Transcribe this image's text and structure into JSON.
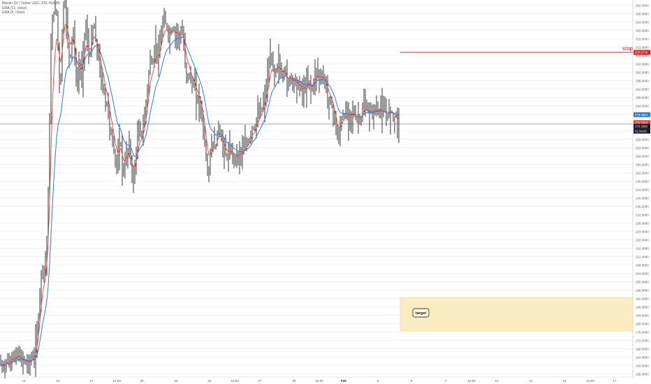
{
  "legend": {
    "symbol": "Bitcoin SV / Tether USD, 120, HUOBI",
    "ema1": "EMA (21, close)",
    "ema2": "EMA (6, close)"
  },
  "colors": {
    "candle": "#222222",
    "ema21": "#2a7fd4",
    "ema6": "#e8413c",
    "stop": "#e0242a",
    "target_fill": "#fbedc2",
    "target_border": "#efd487",
    "price_line": "#777777",
    "grid": "#ececec"
  },
  "annotations": {
    "stop_label": "stop",
    "stop_price": "309.5770",
    "target_label": "target"
  },
  "price_tags": {
    "ema21": "279.4864",
    "ema6": "276.3333",
    "last": "275.3006",
    "countdown": "01:34:03"
  },
  "chart_data": {
    "type": "candlestick",
    "y_ticks": [
      "332.0000",
      "328.0000",
      "324.0000",
      "320.0000",
      "316.0000",
      "312.0000",
      "308.0000",
      "304.0000",
      "300.0000",
      "296.0000",
      "292.0000",
      "288.0000",
      "284.0000",
      "280.0000",
      "276.0000",
      "272.0000",
      "268.0000",
      "264.0000",
      "260.0000",
      "256.0000",
      "252.0000",
      "248.0000",
      "244.0000",
      "240.0000",
      "236.0000",
      "232.0000",
      "228.0000",
      "224.0000",
      "220.0000",
      "216.0000",
      "212.0000",
      "208.0000",
      "204.0000",
      "200.0000",
      "196.0000",
      "192.0000",
      "188.0000",
      "184.0000",
      "180.0000",
      "176.0000",
      "172.0000",
      "168.0000",
      "164.0000",
      "160.0000",
      "156.0000"
    ],
    "ylim": [
      154.5,
      334.6
    ],
    "x_ticks": [
      "13",
      "15",
      "17",
      "12:00",
      "20",
      "22",
      "24",
      "12:00",
      "27",
      "29",
      "12:00",
      "Feb",
      "3",
      "5",
      "7",
      "12:00",
      "10",
      "12",
      "14",
      "12:00",
      "17"
    ],
    "stop_level": 309.577,
    "target_zone": [
      176.5,
      192.5
    ],
    "last_price": 275.3006,
    "ema21_last": 279.4864,
    "ema6_last": 276.3333,
    "price_path": [
      [
        0,
        161
      ],
      [
        2,
        160
      ],
      [
        4,
        158
      ],
      [
        6,
        160
      ],
      [
        8,
        162
      ],
      [
        10,
        163
      ],
      [
        12,
        161
      ],
      [
        14,
        160
      ],
      [
        16,
        163
      ],
      [
        18,
        166
      ],
      [
        20,
        164
      ],
      [
        22,
        162
      ],
      [
        24,
        165
      ],
      [
        26,
        167
      ],
      [
        28,
        164
      ],
      [
        30,
        161
      ],
      [
        32,
        163
      ],
      [
        34,
        164
      ],
      [
        36,
        161
      ],
      [
        38,
        160
      ],
      [
        40,
        162
      ],
      [
        42,
        161
      ],
      [
        44,
        163
      ],
      [
        46,
        164
      ],
      [
        48,
        163
      ],
      [
        50,
        166
      ],
      [
        52,
        172
      ],
      [
        54,
        178
      ],
      [
        56,
        190
      ],
      [
        58,
        200
      ],
      [
        60,
        206
      ],
      [
        62,
        208
      ],
      [
        64,
        205
      ],
      [
        66,
        212
      ],
      [
        68,
        230
      ],
      [
        70,
        255
      ],
      [
        72,
        300
      ],
      [
        74,
        322
      ],
      [
        76,
        330
      ],
      [
        78,
        328
      ],
      [
        80,
        332
      ],
      [
        82,
        326
      ],
      [
        84,
        300
      ],
      [
        86,
        288
      ],
      [
        88,
        310
      ],
      [
        90,
        330
      ],
      [
        92,
        334
      ],
      [
        94,
        332
      ],
      [
        96,
        318
      ],
      [
        98,
        310
      ],
      [
        100,
        305
      ],
      [
        102,
        312
      ],
      [
        104,
        322
      ],
      [
        106,
        316
      ],
      [
        108,
        300
      ],
      [
        110,
        292
      ],
      [
        112,
        300
      ],
      [
        114,
        306
      ],
      [
        116,
        296
      ],
      [
        118,
        300
      ],
      [
        120,
        315
      ],
      [
        122,
        322
      ],
      [
        124,
        318
      ],
      [
        126,
        312
      ],
      [
        128,
        306
      ],
      [
        130,
        312
      ],
      [
        132,
        318
      ],
      [
        134,
        324
      ],
      [
        136,
        318
      ],
      [
        138,
        312
      ],
      [
        140,
        308
      ],
      [
        142,
        306
      ],
      [
        144,
        298
      ],
      [
        146,
        292
      ],
      [
        148,
        296
      ],
      [
        150,
        286
      ],
      [
        152,
        282
      ],
      [
        154,
        290
      ],
      [
        156,
        276
      ],
      [
        158,
        268
      ],
      [
        160,
        272
      ],
      [
        162,
        264
      ],
      [
        164,
        260
      ],
      [
        166,
        258
      ],
      [
        168,
        254
      ],
      [
        170,
        262
      ],
      [
        172,
        270
      ],
      [
        174,
        260
      ],
      [
        176,
        250
      ],
      [
        178,
        254
      ],
      [
        180,
        262
      ],
      [
        182,
        258
      ],
      [
        184,
        268
      ],
      [
        186,
        262
      ],
      [
        188,
        256
      ],
      [
        190,
        245
      ],
      [
        192,
        250
      ],
      [
        194,
        260
      ],
      [
        196,
        266
      ],
      [
        198,
        270
      ],
      [
        200,
        276
      ],
      [
        202,
        268
      ],
      [
        204,
        272
      ],
      [
        206,
        276
      ],
      [
        208,
        282
      ],
      [
        210,
        290
      ],
      [
        212,
        296
      ],
      [
        214,
        303
      ],
      [
        216,
        310
      ],
      [
        218,
        300
      ],
      [
        220,
        308
      ],
      [
        222,
        316
      ],
      [
        224,
        312
      ],
      [
        226,
        304
      ],
      [
        228,
        310
      ],
      [
        230,
        316
      ],
      [
        232,
        322
      ],
      [
        234,
        326
      ],
      [
        236,
        320
      ],
      [
        238,
        326
      ],
      [
        240,
        318
      ],
      [
        242,
        314
      ],
      [
        244,
        322
      ],
      [
        246,
        318
      ],
      [
        248,
        324
      ],
      [
        250,
        316
      ],
      [
        252,
        318
      ],
      [
        254,
        322
      ],
      [
        256,
        314
      ],
      [
        258,
        318
      ],
      [
        260,
        320
      ],
      [
        262,
        318
      ],
      [
        264,
        306
      ],
      [
        266,
        302
      ],
      [
        268,
        296
      ],
      [
        270,
        302
      ],
      [
        272,
        298
      ],
      [
        274,
        292
      ],
      [
        276,
        296
      ],
      [
        278,
        294
      ],
      [
        280,
        290
      ],
      [
        282,
        286
      ],
      [
        284,
        288
      ],
      [
        286,
        284
      ],
      [
        288,
        282
      ],
      [
        290,
        276
      ],
      [
        292,
        270
      ],
      [
        294,
        262
      ],
      [
        296,
        255
      ],
      [
        298,
        250
      ],
      [
        300,
        258
      ],
      [
        302,
        262
      ],
      [
        304,
        268
      ],
      [
        306,
        266
      ],
      [
        308,
        262
      ],
      [
        310,
        268
      ],
      [
        312,
        276
      ],
      [
        314,
        272
      ],
      [
        316,
        270
      ],
      [
        318,
        264
      ],
      [
        320,
        266
      ],
      [
        322,
        262
      ],
      [
        324,
        258
      ],
      [
        326,
        262
      ],
      [
        328,
        260
      ],
      [
        330,
        264
      ],
      [
        332,
        262
      ],
      [
        334,
        258
      ],
      [
        336,
        260
      ],
      [
        338,
        262
      ],
      [
        340,
        258
      ],
      [
        342,
        260
      ],
      [
        344,
        264
      ],
      [
        346,
        260
      ],
      [
        348,
        262
      ],
      [
        350,
        266
      ],
      [
        352,
        264
      ],
      [
        354,
        268
      ],
      [
        356,
        266
      ],
      [
        358,
        270
      ],
      [
        360,
        272
      ],
      [
        362,
        276
      ],
      [
        364,
        270
      ],
      [
        366,
        276
      ],
      [
        368,
        280
      ],
      [
        370,
        278
      ],
      [
        372,
        284
      ],
      [
        374,
        280
      ],
      [
        376,
        286
      ],
      [
        378,
        284
      ],
      [
        380,
        290
      ],
      [
        382,
        296
      ],
      [
        384,
        300
      ],
      [
        386,
        304
      ],
      [
        388,
        310
      ],
      [
        390,
        304
      ],
      [
        392,
        298
      ],
      [
        394,
        302
      ],
      [
        396,
        300
      ],
      [
        398,
        306
      ],
      [
        400,
        304
      ],
      [
        402,
        300
      ],
      [
        404,
        296
      ],
      [
        406,
        300
      ],
      [
        408,
        304
      ],
      [
        410,
        296
      ],
      [
        412,
        292
      ],
      [
        414,
        296
      ],
      [
        416,
        300
      ],
      [
        418,
        296
      ],
      [
        420,
        292
      ],
      [
        422,
        298
      ],
      [
        424,
        296
      ],
      [
        426,
        294
      ],
      [
        428,
        290
      ],
      [
        430,
        296
      ],
      [
        432,
        292
      ],
      [
        434,
        288
      ],
      [
        436,
        294
      ],
      [
        438,
        296
      ],
      [
        440,
        292
      ],
      [
        442,
        298
      ],
      [
        444,
        294
      ],
      [
        446,
        290
      ],
      [
        448,
        294
      ],
      [
        450,
        298
      ],
      [
        452,
        300
      ],
      [
        454,
        302
      ],
      [
        456,
        298
      ],
      [
        458,
        296
      ],
      [
        460,
        300
      ],
      [
        462,
        296
      ],
      [
        464,
        298
      ],
      [
        466,
        294
      ],
      [
        468,
        290
      ],
      [
        470,
        286
      ],
      [
        472,
        288
      ],
      [
        474,
        284
      ],
      [
        476,
        282
      ],
      [
        478,
        280
      ],
      [
        480,
        276
      ],
      [
        482,
        270
      ],
      [
        484,
        266
      ],
      [
        486,
        272
      ],
      [
        488,
        276
      ],
      [
        490,
        280
      ],
      [
        492,
        278
      ],
      [
        494,
        282
      ],
      [
        496,
        280
      ],
      [
        498,
        278
      ],
      [
        500,
        282
      ],
      [
        502,
        280
      ],
      [
        504,
        278
      ],
      [
        506,
        282
      ],
      [
        508,
        280
      ],
      [
        510,
        276
      ],
      [
        512,
        280
      ],
      [
        514,
        278
      ],
      [
        516,
        276
      ],
      [
        518,
        280
      ],
      [
        520,
        282
      ],
      [
        522,
        286
      ],
      [
        524,
        284
      ],
      [
        526,
        280
      ],
      [
        528,
        282
      ],
      [
        530,
        280
      ],
      [
        532,
        282
      ],
      [
        534,
        280
      ],
      [
        536,
        282
      ],
      [
        538,
        284
      ],
      [
        540,
        282
      ],
      [
        542,
        280
      ],
      [
        544,
        284
      ],
      [
        546,
        282
      ],
      [
        548,
        280
      ],
      [
        550,
        282
      ],
      [
        552,
        280
      ],
      [
        554,
        278
      ],
      [
        556,
        282
      ],
      [
        558,
        280
      ],
      [
        560,
        282
      ],
      [
        562,
        280
      ],
      [
        564,
        278
      ],
      [
        566,
        280
      ],
      [
        568,
        278
      ],
      [
        570,
        276
      ],
      [
        572,
        275.3
      ]
    ]
  }
}
